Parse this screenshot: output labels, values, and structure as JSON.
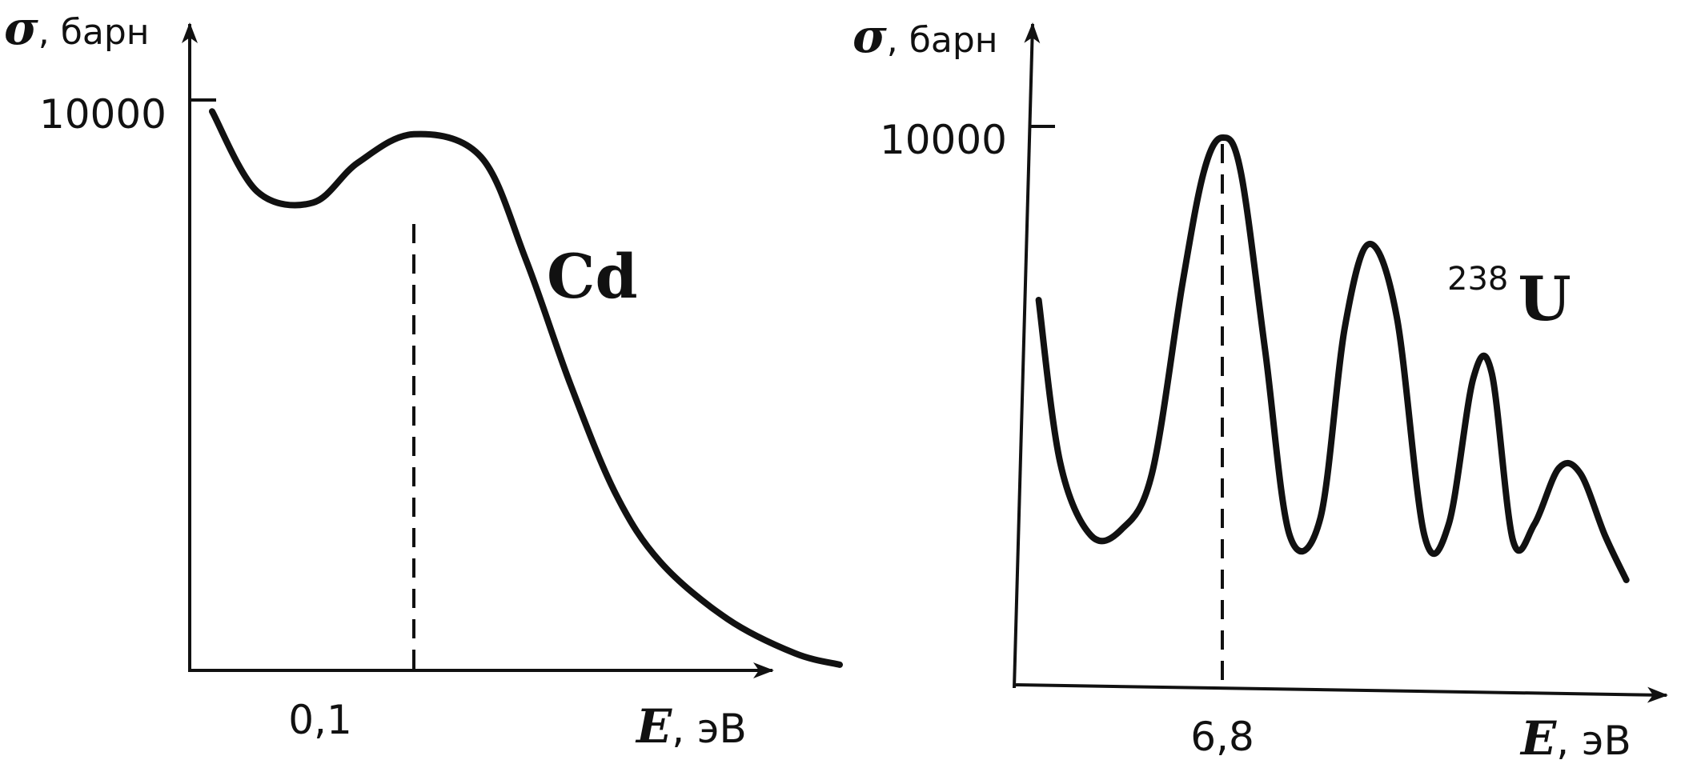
{
  "chart_data": [
    {
      "type": "line",
      "panel": "left",
      "element_label": "Cd",
      "y_symbol": "σ",
      "y_unit": ", барн",
      "x_symbol": "E",
      "x_unit": ", эВ",
      "y_tick_label": "10000",
      "x_tick_label": "0,1",
      "y_tick_value": 10000,
      "ylim": [
        0,
        10500
      ],
      "xlim": [
        0,
        0.3
      ],
      "marker_x": 0.1,
      "grid": false,
      "series": [
        {
          "x": [
            0.01,
            0.03,
            0.055,
            0.075,
            0.1,
            0.13,
            0.15,
            0.17,
            0.19,
            0.21,
            0.24,
            0.27,
            0.29
          ],
          "y": [
            9800,
            8400,
            8200,
            8900,
            9400,
            9000,
            7200,
            5000,
            3100,
            1900,
            900,
            300,
            100
          ]
        }
      ]
    },
    {
      "type": "line",
      "panel": "right",
      "element_label": "U",
      "isotope_mass": "238",
      "y_symbol": "σ",
      "y_unit": ", барн",
      "x_symbol": "E",
      "x_unit": ", эВ",
      "y_tick_label": "10000",
      "x_tick_label": "6,8",
      "y_tick_value": 10000,
      "ylim": [
        0,
        10200
      ],
      "xlim": [
        0,
        38
      ],
      "marker_x": 6.8,
      "grid": false,
      "series": [
        {
          "x": [
            0.8,
            1.5,
            2.5,
            3.5,
            4.5,
            5.5,
            6.2,
            6.8,
            7.4,
            8.2,
            9,
            10,
            10.8,
            11.6,
            12.5,
            13.4,
            14.2,
            15,
            15.6,
            16.3,
            17,
            17.8,
            18.5,
            19.3,
            20
          ],
          "y": [
            6900,
            4000,
            2700,
            2800,
            3800,
            7200,
            9200,
            9800,
            9200,
            6000,
            2700,
            3000,
            6400,
            7900,
            6600,
            2700,
            2900,
            5500,
            5600,
            2600,
            2900,
            3900,
            3800,
            2700,
            1900
          ]
        }
      ]
    }
  ]
}
